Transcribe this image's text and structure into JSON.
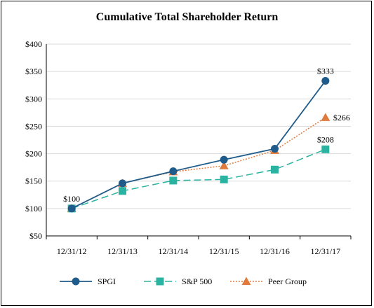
{
  "chart_data": {
    "type": "line",
    "title": "Cumulative Total Shareholder Return",
    "categories": [
      "12/31/12",
      "12/31/13",
      "12/31/14",
      "12/31/15",
      "12/31/16",
      "12/31/17"
    ],
    "y_ticks": [
      "$50",
      "$100",
      "$150",
      "$200",
      "$250",
      "$300",
      "$350",
      "$400"
    ],
    "ylim": [
      50,
      400
    ],
    "grid": true,
    "legend_position": "bottom",
    "series": [
      {
        "name": "SPGI",
        "values": [
          100,
          146,
          168,
          189,
          209,
          333
        ],
        "color": "#1f5c8b",
        "marker": "circle",
        "line": "solid"
      },
      {
        "name": "S&P 500",
        "values": [
          100,
          132,
          151,
          153,
          171,
          208
        ],
        "color": "#2ab3a0",
        "marker": "square",
        "line": "dashed"
      },
      {
        "name": "Peer Group",
        "values": [
          100,
          146,
          167,
          178,
          206,
          266
        ],
        "color": "#e07a3c",
        "marker": "triangle",
        "line": "dotted"
      }
    ],
    "annotations": [
      {
        "series": "SPGI",
        "index": 0,
        "text": "$100"
      },
      {
        "series": "SPGI",
        "index": 5,
        "text": "$333"
      },
      {
        "series": "Peer Group",
        "index": 5,
        "text": "$266"
      },
      {
        "series": "S&P 500",
        "index": 5,
        "text": "$208"
      }
    ]
  }
}
